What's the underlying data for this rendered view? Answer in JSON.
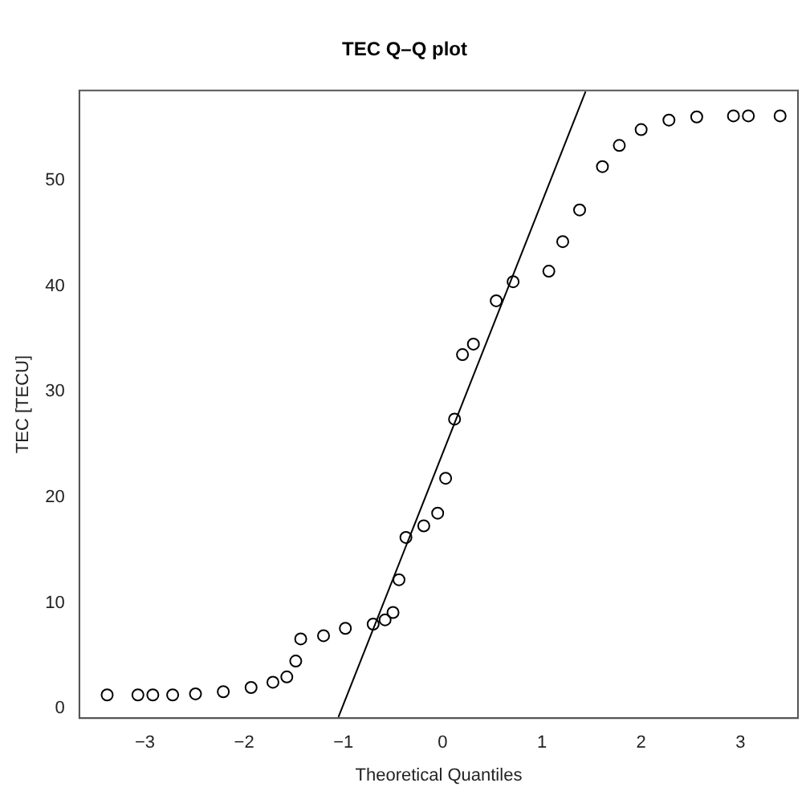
{
  "chart_data": {
    "type": "scatter",
    "title": "TEC Q–Q plot",
    "xlabel": "Theoretical Quantiles",
    "ylabel": "TEC [TECU]",
    "xlim": [
      -3.66,
      3.58
    ],
    "ylim": [
      -0.9,
      58.5
    ],
    "xticks": [
      -3,
      -2,
      -1,
      0,
      1,
      2,
      3
    ],
    "yticks": [
      0,
      10,
      20,
      30,
      40,
      50
    ],
    "grid": false,
    "legend": false,
    "series": [
      {
        "marker": "circle",
        "color": "#000000",
        "x": [
          -3.38,
          -3.07,
          -2.92,
          -2.72,
          -2.49,
          -2.21,
          -1.93,
          -1.71,
          -1.57,
          -1.48,
          -1.43,
          -1.2,
          -0.98,
          -0.7,
          -0.58,
          -0.5,
          -0.44,
          -0.37,
          -0.19,
          -0.05,
          0.03,
          0.12,
          0.2,
          0.31,
          0.54,
          0.71,
          1.07,
          1.21,
          1.38,
          1.61,
          1.78,
          2.0,
          2.28,
          2.56,
          2.93,
          3.08,
          3.4
        ],
        "values": [
          1.3,
          1.3,
          1.3,
          1.3,
          1.4,
          1.6,
          2.0,
          2.5,
          3.0,
          4.5,
          6.6,
          6.9,
          7.6,
          8.0,
          8.4,
          9.1,
          12.2,
          16.2,
          17.3,
          18.5,
          21.8,
          27.4,
          33.5,
          34.5,
          38.6,
          40.4,
          41.4,
          44.2,
          47.2,
          51.3,
          53.3,
          54.8,
          55.7,
          56.0,
          56.1,
          56.1,
          56.1
        ]
      },
      {
        "type": "line",
        "marker": "none",
        "color": "#000000",
        "x": [
          -1.05,
          1.44
        ],
        "values": [
          -0.8,
          58.4
        ]
      }
    ]
  }
}
